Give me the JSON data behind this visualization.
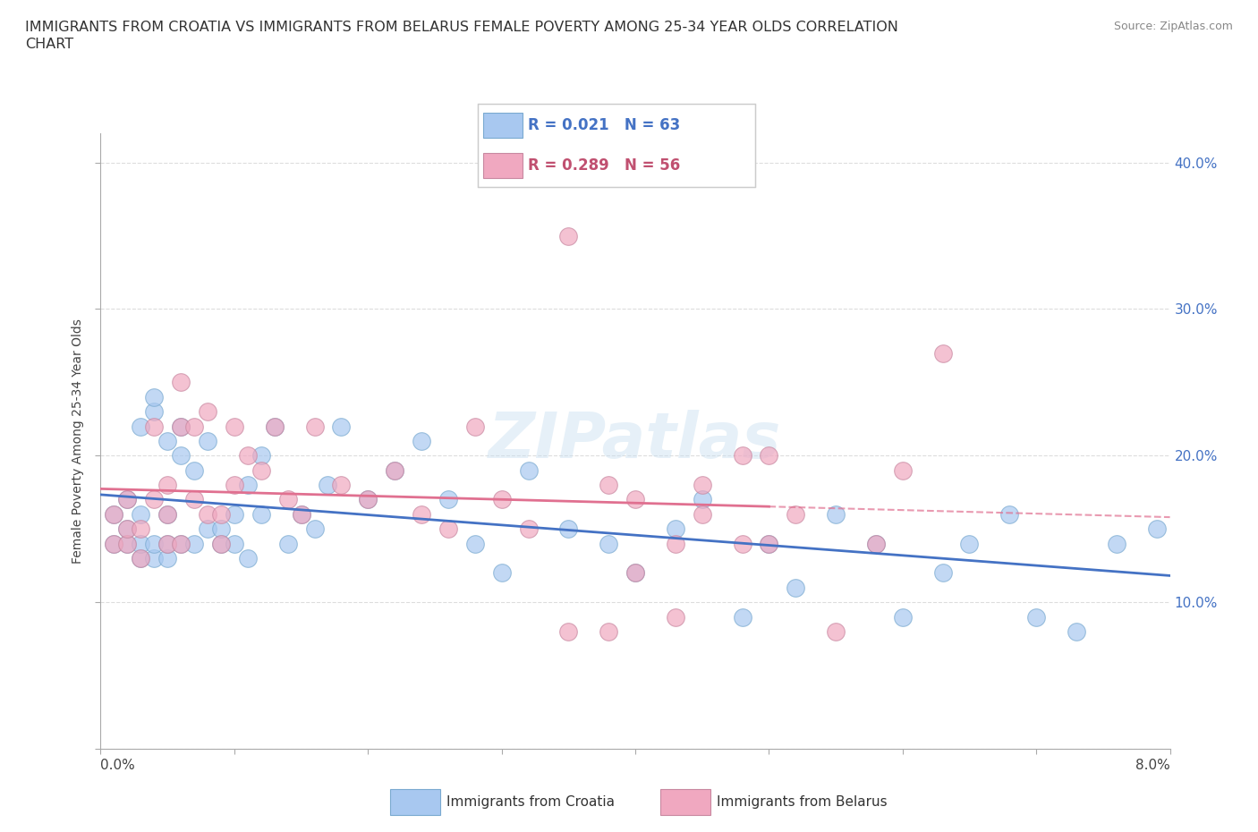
{
  "title_line1": "IMMIGRANTS FROM CROATIA VS IMMIGRANTS FROM BELARUS FEMALE POVERTY AMONG 25-34 YEAR OLDS CORRELATION",
  "title_line2": "CHART",
  "source": "Source: ZipAtlas.com",
  "ylabel": "Female Poverty Among 25-34 Year Olds",
  "legend_croatia": "Immigrants from Croatia",
  "legend_belarus": "Immigrants from Belarus",
  "legend_r_croatia": "R = 0.021",
  "legend_n_croatia": "N = 63",
  "legend_r_belarus": "R = 0.289",
  "legend_n_belarus": "N = 56",
  "color_croatia": "#a8c8f0",
  "color_belarus": "#f0a8c0",
  "color_croatia_line": "#4472c4",
  "color_belarus_line": "#e07090",
  "color_text_blue": "#4472c4",
  "color_text_pink": "#c05070",
  "watermark": "ZIPatlas",
  "croatia_x": [
    0.001,
    0.001,
    0.002,
    0.002,
    0.002,
    0.003,
    0.003,
    0.003,
    0.003,
    0.004,
    0.004,
    0.004,
    0.004,
    0.005,
    0.005,
    0.005,
    0.005,
    0.006,
    0.006,
    0.006,
    0.007,
    0.007,
    0.008,
    0.008,
    0.009,
    0.009,
    0.01,
    0.01,
    0.011,
    0.011,
    0.012,
    0.012,
    0.013,
    0.014,
    0.015,
    0.016,
    0.017,
    0.018,
    0.02,
    0.022,
    0.024,
    0.026,
    0.028,
    0.03,
    0.032,
    0.035,
    0.038,
    0.04,
    0.043,
    0.045,
    0.048,
    0.05,
    0.052,
    0.055,
    0.058,
    0.06,
    0.063,
    0.065,
    0.068,
    0.07,
    0.073,
    0.076,
    0.079
  ],
  "croatia_y": [
    0.14,
    0.16,
    0.14,
    0.15,
    0.17,
    0.13,
    0.14,
    0.16,
    0.22,
    0.13,
    0.14,
    0.23,
    0.24,
    0.13,
    0.14,
    0.16,
    0.21,
    0.14,
    0.2,
    0.22,
    0.14,
    0.19,
    0.15,
    0.21,
    0.14,
    0.15,
    0.14,
    0.16,
    0.13,
    0.18,
    0.16,
    0.2,
    0.22,
    0.14,
    0.16,
    0.15,
    0.18,
    0.22,
    0.17,
    0.19,
    0.21,
    0.17,
    0.14,
    0.12,
    0.19,
    0.15,
    0.14,
    0.12,
    0.15,
    0.17,
    0.09,
    0.14,
    0.11,
    0.16,
    0.14,
    0.09,
    0.12,
    0.14,
    0.16,
    0.09,
    0.08,
    0.14,
    0.15
  ],
  "belarus_x": [
    0.001,
    0.001,
    0.002,
    0.002,
    0.002,
    0.003,
    0.003,
    0.004,
    0.004,
    0.005,
    0.005,
    0.005,
    0.006,
    0.006,
    0.006,
    0.007,
    0.007,
    0.008,
    0.008,
    0.009,
    0.009,
    0.01,
    0.01,
    0.011,
    0.012,
    0.013,
    0.014,
    0.015,
    0.016,
    0.018,
    0.02,
    0.022,
    0.024,
    0.026,
    0.028,
    0.03,
    0.032,
    0.035,
    0.038,
    0.04,
    0.043,
    0.045,
    0.048,
    0.05,
    0.035,
    0.038,
    0.04,
    0.043,
    0.045,
    0.048,
    0.05,
    0.052,
    0.055,
    0.058,
    0.06,
    0.063
  ],
  "belarus_y": [
    0.14,
    0.16,
    0.14,
    0.15,
    0.17,
    0.13,
    0.15,
    0.17,
    0.22,
    0.14,
    0.16,
    0.18,
    0.14,
    0.22,
    0.25,
    0.17,
    0.22,
    0.16,
    0.23,
    0.14,
    0.16,
    0.18,
    0.22,
    0.2,
    0.19,
    0.22,
    0.17,
    0.16,
    0.22,
    0.18,
    0.17,
    0.19,
    0.16,
    0.15,
    0.22,
    0.17,
    0.15,
    0.35,
    0.18,
    0.17,
    0.14,
    0.16,
    0.14,
    0.2,
    0.08,
    0.08,
    0.12,
    0.09,
    0.18,
    0.2,
    0.14,
    0.16,
    0.08,
    0.14,
    0.19,
    0.27
  ],
  "xlim": [
    0.0,
    0.08
  ],
  "ylim": [
    0.0,
    0.42
  ],
  "yticks": [
    0.0,
    0.1,
    0.2,
    0.3,
    0.4
  ],
  "ytick_labels": [
    "",
    "10.0%",
    "20.0%",
    "30.0%",
    "40.0%"
  ],
  "grid_color": "#dddddd"
}
